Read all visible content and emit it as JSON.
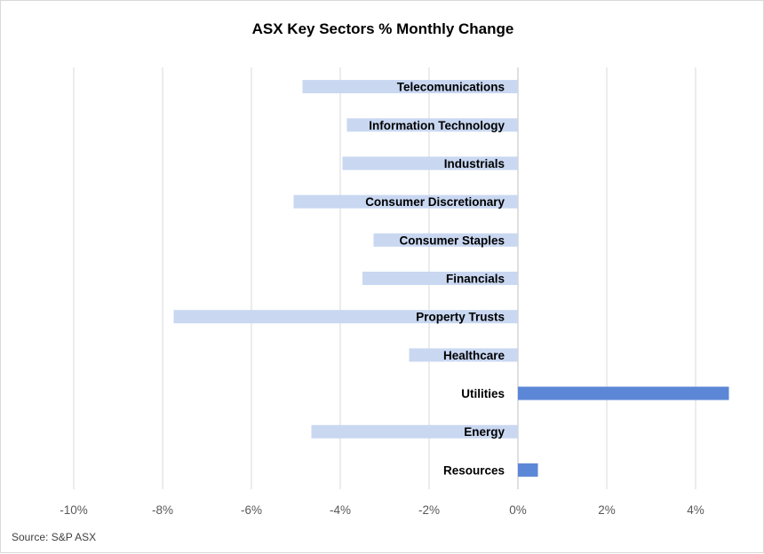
{
  "chart_data": {
    "type": "bar",
    "orientation": "horizontal",
    "title": "ASX Key Sectors % Monthly Change",
    "categories": [
      "Telecomunications",
      "Information Technology",
      "Industrials",
      "Consumer Discretionary",
      "Consumer Staples",
      "Financials",
      "Property Trusts",
      "Healthcare",
      "Utilities",
      "Energy",
      "Resources"
    ],
    "values": [
      -4.85,
      -3.85,
      -3.95,
      -5.05,
      -3.25,
      -3.5,
      -7.75,
      -2.45,
      4.75,
      -4.65,
      0.45
    ],
    "xlim": [
      -10,
      5
    ],
    "xticks": [
      "-10%",
      "-8%",
      "-6%",
      "-4%",
      "-2%",
      "0%",
      "2%",
      "4%"
    ],
    "xtick_values": [
      -10,
      -8,
      -6,
      -4,
      -2,
      0,
      2,
      4
    ],
    "grid": "vertical",
    "colors": {
      "negative": "#c9d7f1",
      "positive": "#5b87d6",
      "grid": "#d9d9d9",
      "axis": "#bfbfbf"
    }
  },
  "source": "Source: S&P ASX"
}
